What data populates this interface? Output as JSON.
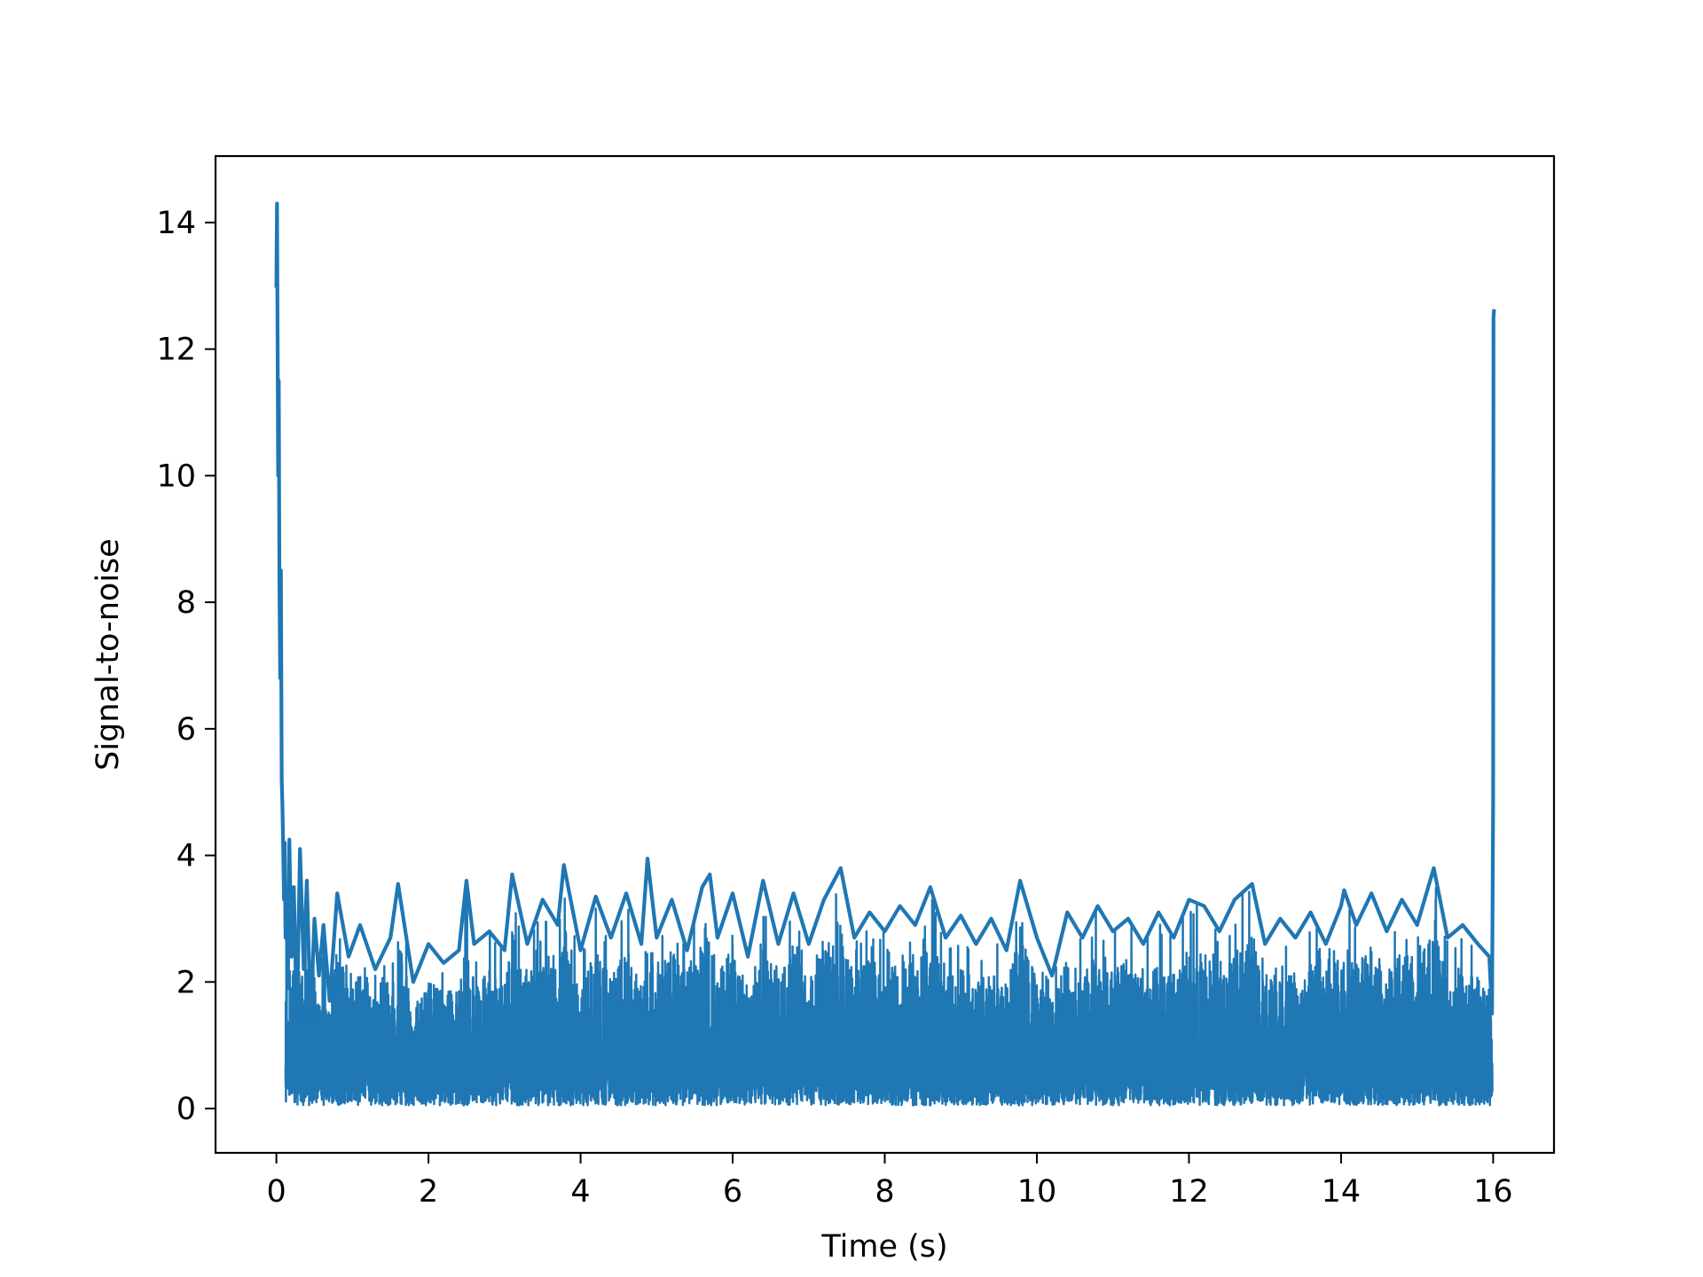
{
  "chart_data": {
    "type": "line",
    "title": "",
    "xlabel": "Time (s)",
    "ylabel": "Signal-to-noise",
    "xlim": [
      -0.8,
      16.8
    ],
    "ylim": [
      -0.7,
      15.05
    ],
    "xticks": [
      0,
      2,
      4,
      6,
      8,
      10,
      12,
      14,
      16
    ],
    "yticks": [
      0,
      2,
      4,
      6,
      8,
      10,
      12,
      14
    ],
    "grid": false,
    "legend": "none",
    "series": [
      {
        "color": "#1f77b4",
        "x": [
          0,
          0.008,
          0.016,
          0.024,
          0.032,
          0.04,
          0.05,
          0.06,
          0.07,
          0.08,
          0.09,
          0.1,
          0.11,
          0.12,
          0.13,
          0.15,
          0.17,
          0.2,
          0.23,
          0.27,
          0.31,
          0.36,
          0.4,
          0.45,
          0.5,
          0.56,
          0.62,
          0.7,
          0.8,
          0.95,
          1.1,
          1.3,
          1.5,
          1.6,
          1.8,
          2.0,
          2.2,
          2.4,
          2.5,
          2.6,
          2.8,
          3.0,
          3.1,
          3.3,
          3.5,
          3.7,
          3.78,
          4.0,
          4.2,
          4.4,
          4.6,
          4.8,
          4.88,
          5.0,
          5.2,
          5.4,
          5.6,
          5.7,
          5.8,
          6.0,
          6.2,
          6.4,
          6.6,
          6.8,
          7.0,
          7.2,
          7.42,
          7.6,
          7.8,
          8.0,
          8.2,
          8.4,
          8.6,
          8.8,
          9.0,
          9.2,
          9.4,
          9.6,
          9.78,
          10.0,
          10.2,
          10.4,
          10.6,
          10.8,
          11.0,
          11.2,
          11.4,
          11.6,
          11.8,
          12.0,
          12.2,
          12.4,
          12.6,
          12.83,
          13.0,
          13.2,
          13.4,
          13.6,
          13.8,
          14.0,
          14.04,
          14.2,
          14.4,
          14.6,
          14.8,
          15.0,
          15.22,
          15.4,
          15.6,
          15.8,
          15.95,
          15.985,
          16.0,
          16.005,
          16.01
        ],
        "y": [
          13.0,
          14.3,
          12.0,
          10.0,
          11.5,
          8.4,
          6.8,
          8.5,
          5.2,
          4.8,
          4.1,
          3.3,
          4.2,
          2.7,
          3.4,
          1.9,
          4.25,
          2.4,
          3.5,
          1.3,
          4.1,
          2.2,
          3.6,
          1.4,
          3.0,
          2.1,
          2.9,
          1.7,
          3.4,
          2.4,
          2.9,
          2.2,
          2.7,
          3.55,
          2.0,
          2.6,
          2.3,
          2.5,
          3.6,
          2.6,
          2.8,
          2.5,
          3.7,
          2.6,
          3.3,
          2.9,
          3.85,
          2.5,
          3.35,
          2.7,
          3.4,
          2.6,
          3.95,
          2.7,
          3.3,
          2.5,
          3.5,
          3.7,
          2.7,
          3.4,
          2.4,
          3.6,
          2.6,
          3.4,
          2.6,
          3.3,
          3.8,
          2.7,
          3.1,
          2.8,
          3.2,
          2.9,
          3.5,
          2.7,
          3.05,
          2.6,
          3.0,
          2.5,
          3.6,
          2.7,
          2.1,
          3.1,
          2.7,
          3.2,
          2.8,
          3.0,
          2.6,
          3.1,
          2.7,
          3.3,
          3.2,
          2.8,
          3.3,
          3.55,
          2.6,
          3.0,
          2.7,
          3.1,
          2.6,
          3.2,
          3.45,
          2.9,
          3.4,
          2.8,
          3.3,
          2.9,
          3.8,
          2.7,
          2.9,
          2.6,
          2.4,
          1.5,
          4.9,
          12.5,
          12.6
        ]
      }
    ]
  }
}
